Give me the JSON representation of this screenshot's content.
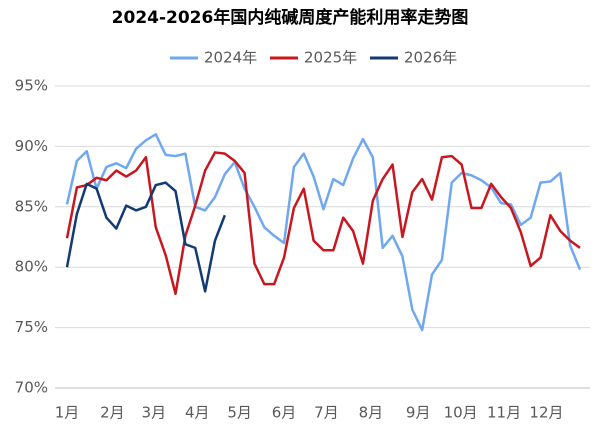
{
  "chart_data": {
    "type": "line",
    "title": "2024-2026年国内纯碱周度产能利用率走势图",
    "x": [
      1,
      2,
      3,
      4,
      5,
      6,
      7,
      8,
      9,
      10,
      11,
      12,
      13,
      14,
      15,
      16,
      17,
      18,
      19,
      20,
      21,
      22,
      23,
      24,
      25,
      26,
      27,
      28,
      29,
      30,
      31,
      32,
      33,
      34,
      35,
      36,
      37,
      38,
      39,
      40,
      41,
      42,
      43,
      44,
      45,
      46,
      47,
      48,
      49,
      50,
      51,
      52,
      53
    ],
    "xlim": [
      1,
      53
    ],
    "xticks": [
      {
        "value": 1,
        "label": "1月"
      },
      {
        "value": 5.6,
        "label": "2月"
      },
      {
        "value": 9.8,
        "label": "3月"
      },
      {
        "value": 14.2,
        "label": "4月"
      },
      {
        "value": 18.5,
        "label": "5月"
      },
      {
        "value": 23,
        "label": "6月"
      },
      {
        "value": 27.3,
        "label": "7月"
      },
      {
        "value": 31.8,
        "label": "8月"
      },
      {
        "value": 36.6,
        "label": "9月"
      },
      {
        "value": 40.9,
        "label": "10月"
      },
      {
        "value": 45.3,
        "label": "11月"
      },
      {
        "value": 49.6,
        "label": "12月"
      }
    ],
    "ylim": [
      70,
      95
    ],
    "yticks": [
      {
        "value": 70,
        "label": "70%"
      },
      {
        "value": 75,
        "label": "75%"
      },
      {
        "value": 80,
        "label": "80%"
      },
      {
        "value": 85,
        "label": "85%"
      },
      {
        "value": 90,
        "label": "90%"
      },
      {
        "value": 95,
        "label": "95%"
      }
    ],
    "grid": true,
    "legend": "top",
    "series": [
      {
        "name": "2024年",
        "color": "#6fa8f0",
        "values": [
          85.2,
          88.8,
          89.6,
          86.5,
          88.3,
          88.6,
          88.2,
          89.8,
          90.5,
          91.0,
          89.3,
          89.2,
          89.4,
          85.0,
          84.7,
          85.8,
          87.7,
          88.7,
          86.5,
          85.0,
          83.3,
          82.6,
          82.0,
          88.3,
          89.4,
          87.5,
          84.8,
          87.3,
          86.8,
          89.0,
          90.6,
          89.1,
          81.6,
          82.6,
          80.9,
          76.5,
          74.8,
          79.4,
          80.6,
          87.0,
          87.8,
          87.6,
          87.2,
          86.6,
          85.3,
          85.2,
          83.5,
          84.1,
          87.0,
          87.1,
          87.8,
          81.8,
          79.8
        ]
      },
      {
        "name": "2025年",
        "color": "#c8171e",
        "values": [
          82.4,
          86.6,
          86.8,
          87.4,
          87.2,
          88.0,
          87.5,
          88.0,
          89.1,
          83.3,
          81.0,
          77.8,
          82.6,
          85.1,
          88.0,
          89.5,
          89.4,
          88.8,
          87.8,
          80.3,
          78.6,
          78.6,
          80.8,
          84.9,
          86.5,
          82.2,
          81.4,
          81.4,
          84.1,
          83.0,
          80.3,
          85.5,
          87.3,
          88.5,
          82.5,
          86.2,
          87.3,
          85.6,
          89.1,
          89.2,
          88.5,
          84.9,
          84.9,
          86.9,
          85.8,
          84.9,
          82.9,
          80.1,
          80.8,
          84.3,
          83.0,
          82.2,
          81.6
        ]
      },
      {
        "name": "2026年",
        "color": "#123a73",
        "values": [
          80.0,
          84.4,
          86.9,
          86.5,
          84.1,
          83.2,
          85.1,
          84.7,
          85.0,
          86.8,
          87.0,
          86.3,
          81.9,
          81.6,
          78.0,
          82.2,
          84.3,
          null,
          null,
          null,
          null,
          null,
          null,
          null,
          null,
          null,
          null,
          null,
          null,
          null,
          null,
          null,
          null,
          null,
          null,
          null,
          null,
          null,
          null,
          null,
          null,
          null,
          null,
          null,
          null,
          null,
          null,
          null,
          null,
          null,
          null,
          null,
          null
        ]
      }
    ]
  }
}
